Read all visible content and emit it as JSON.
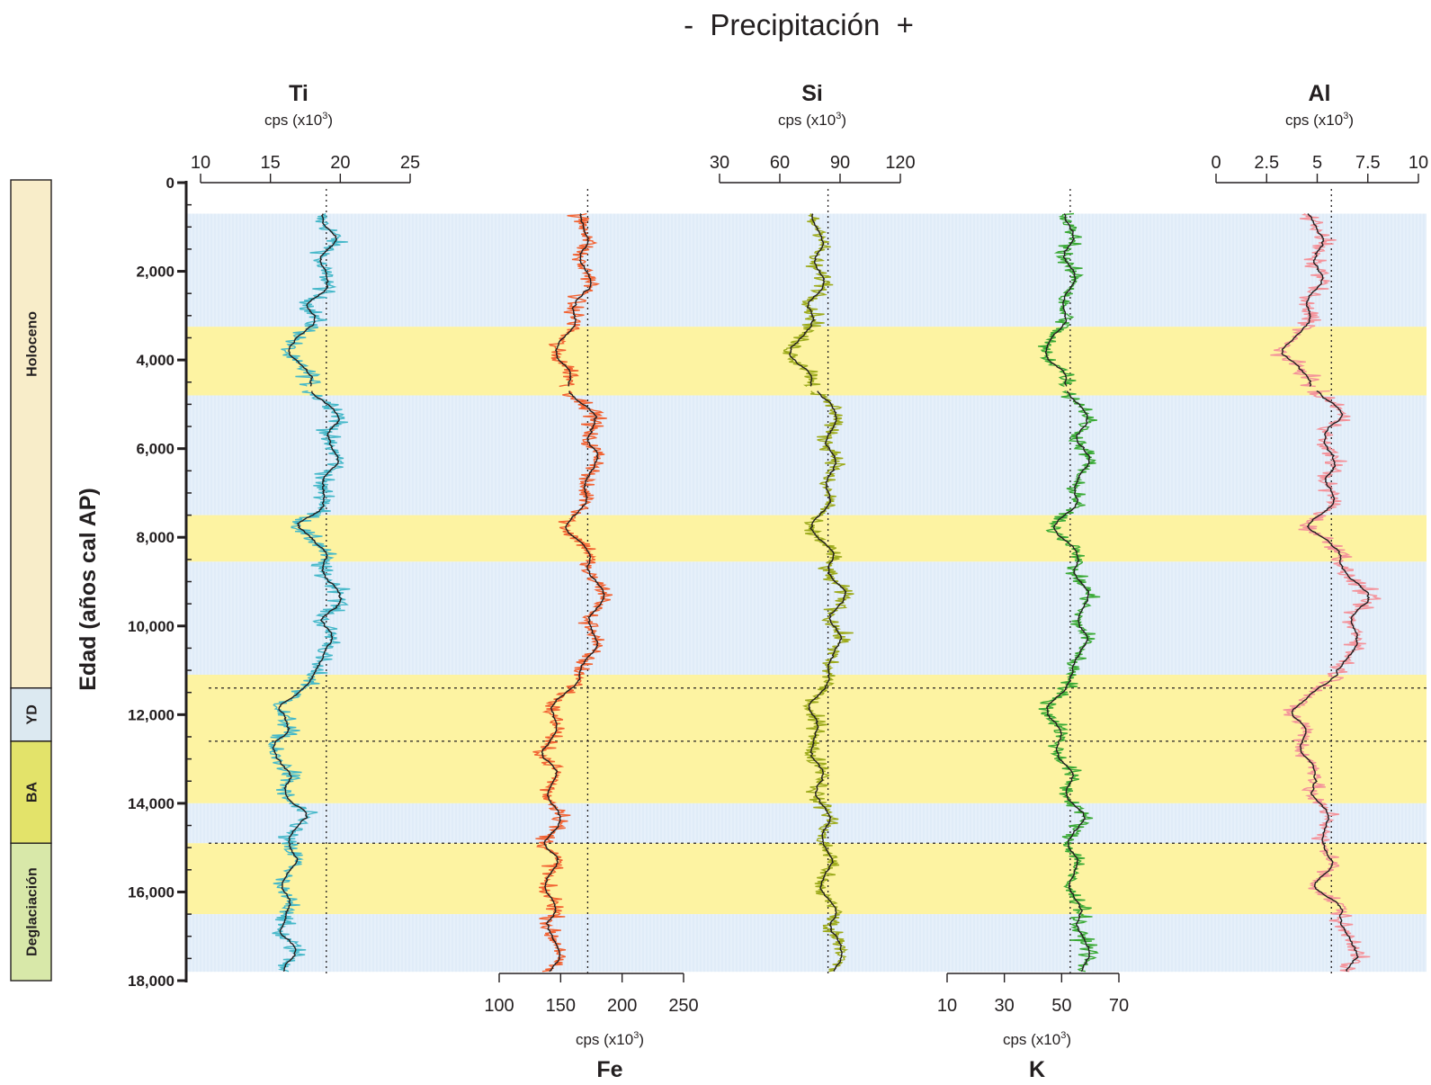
{
  "chart_data": {
    "type": "line",
    "title": "-  Precipitación  +",
    "ylabel": "Edad (años cal AP)",
    "ylim": [
      0,
      18000
    ],
    "y_ticks": [
      0,
      2000,
      4000,
      6000,
      8000,
      10000,
      12000,
      14000,
      16000,
      18000
    ],
    "y_tick_labels": [
      "0",
      "2,000",
      "4,000",
      "6,000",
      "8,000",
      "10,000",
      "12,000",
      "14,000",
      "16,000",
      "18,000"
    ],
    "unit": "cps (x10",
    "unit_exp": "3",
    "periods": [
      {
        "label": "Holoceno",
        "from": 0,
        "to": 11400,
        "color": "#f8edc9"
      },
      {
        "label": "YD",
        "from": 11400,
        "to": 12600,
        "color": "#dce9f1"
      },
      {
        "label": "BA",
        "from": 12600,
        "to": 14900,
        "color": "#e3e36a"
      },
      {
        "label": "Deglaciación",
        "from": 14900,
        "to": 18000,
        "color": "#d8e8a9"
      }
    ],
    "bands": [
      {
        "from": 700,
        "to": 3250,
        "kind": "humid",
        "color": "#e6f0fa"
      },
      {
        "from": 3250,
        "to": 4800,
        "kind": "dry",
        "color": "#fdf3a2"
      },
      {
        "from": 4800,
        "to": 7500,
        "kind": "humid",
        "color": "#e6f0fa"
      },
      {
        "from": 7500,
        "to": 8550,
        "kind": "dry",
        "color": "#fdf3a2"
      },
      {
        "from": 8550,
        "to": 11100,
        "kind": "humid",
        "color": "#e6f0fa"
      },
      {
        "from": 11100,
        "to": 14000,
        "kind": "dry",
        "color": "#fdf3a2"
      },
      {
        "from": 14000,
        "to": 14900,
        "kind": "humid",
        "color": "#e6f0fa"
      },
      {
        "from": 14900,
        "to": 16500,
        "kind": "dry",
        "color": "#fdf3a2"
      },
      {
        "from": 16500,
        "to": 17800,
        "kind": "humid",
        "color": "#e6f0fa"
      }
    ],
    "boundaries": [
      11400,
      12600,
      14900
    ],
    "series": [
      {
        "name": "Ti",
        "axis_pos": "top",
        "xlim": [
          10,
          25
        ],
        "ticks": [
          10,
          15,
          20,
          25
        ],
        "tick_labels": [
          "10",
          "15",
          "20",
          "25"
        ],
        "color": "#45b8c9",
        "mean_line": 19,
        "profile": [
          [
            700,
            19
          ],
          [
            1500,
            19.2
          ],
          [
            2000,
            18.8
          ],
          [
            2500,
            18.5
          ],
          [
            3000,
            18.2
          ],
          [
            3400,
            17
          ],
          [
            4000,
            16.5
          ],
          [
            4600,
            18
          ],
          [
            5000,
            19.5
          ],
          [
            6000,
            19.5
          ],
          [
            7000,
            19
          ],
          [
            7700,
            17.5
          ],
          [
            8400,
            18.5
          ],
          [
            9000,
            19.5
          ],
          [
            9500,
            19.8
          ],
          [
            10000,
            19
          ],
          [
            10800,
            19
          ],
          [
            11400,
            17
          ],
          [
            12000,
            16
          ],
          [
            12700,
            15.5
          ],
          [
            13500,
            16
          ],
          [
            14200,
            17
          ],
          [
            15000,
            16.5
          ],
          [
            16000,
            16
          ],
          [
            17000,
            16.2
          ],
          [
            17800,
            16.5
          ]
        ]
      },
      {
        "name": "Fe",
        "axis_pos": "bottom",
        "xlim": [
          100,
          250
        ],
        "ticks": [
          100,
          150,
          200,
          250
        ],
        "tick_labels": [
          "100",
          "150",
          "200",
          "250"
        ],
        "color": "#f26333",
        "mean_line": 172,
        "profile": [
          [
            700,
            170
          ],
          [
            1500,
            168
          ],
          [
            2000,
            172
          ],
          [
            2500,
            168
          ],
          [
            3000,
            162
          ],
          [
            3500,
            150
          ],
          [
            4000,
            150
          ],
          [
            4600,
            158
          ],
          [
            5000,
            172
          ],
          [
            6000,
            178
          ],
          [
            7000,
            172
          ],
          [
            7700,
            158
          ],
          [
            8400,
            170
          ],
          [
            9000,
            180
          ],
          [
            9500,
            182
          ],
          [
            10000,
            175
          ],
          [
            10800,
            175
          ],
          [
            11400,
            155
          ],
          [
            12000,
            145
          ],
          [
            12700,
            140
          ],
          [
            13500,
            142
          ],
          [
            14200,
            148
          ],
          [
            15000,
            142
          ],
          [
            16000,
            140
          ],
          [
            17000,
            146
          ],
          [
            17800,
            144
          ]
        ]
      },
      {
        "name": "Si",
        "axis_pos": "top",
        "xlim": [
          30,
          120
        ],
        "ticks": [
          30,
          60,
          90,
          120
        ],
        "tick_labels": [
          "30",
          "60",
          "90",
          "120"
        ],
        "color": "#9dab1c",
        "mean_line": 84,
        "profile": [
          [
            700,
            78
          ],
          [
            1500,
            80
          ],
          [
            2000,
            79
          ],
          [
            2500,
            80
          ],
          [
            3000,
            78
          ],
          [
            3400,
            70
          ],
          [
            4000,
            68
          ],
          [
            4600,
            78
          ],
          [
            5000,
            86
          ],
          [
            6000,
            86
          ],
          [
            7000,
            85
          ],
          [
            7700,
            76
          ],
          [
            8400,
            84
          ],
          [
            9000,
            88
          ],
          [
            9500,
            90
          ],
          [
            10000,
            88
          ],
          [
            10800,
            87
          ],
          [
            11400,
            80
          ],
          [
            12000,
            76
          ],
          [
            12700,
            78
          ],
          [
            13500,
            80
          ],
          [
            14200,
            82
          ],
          [
            15000,
            84
          ],
          [
            16000,
            82
          ],
          [
            17000,
            90
          ],
          [
            17800,
            88
          ]
        ]
      },
      {
        "name": "K",
        "axis_pos": "bottom",
        "xlim": [
          10,
          70
        ],
        "ticks": [
          10,
          30,
          50,
          70
        ],
        "tick_labels": [
          "10",
          "30",
          "50",
          "70"
        ],
        "color": "#3aaa35",
        "mean_line": 53,
        "profile": [
          [
            700,
            53
          ],
          [
            1500,
            52
          ],
          [
            2000,
            54
          ],
          [
            2500,
            52
          ],
          [
            3000,
            52
          ],
          [
            3400,
            46
          ],
          [
            4000,
            46
          ],
          [
            4600,
            53
          ],
          [
            5000,
            57
          ],
          [
            6000,
            58
          ],
          [
            7000,
            56
          ],
          [
            7700,
            48
          ],
          [
            8400,
            55
          ],
          [
            9000,
            57
          ],
          [
            9500,
            58
          ],
          [
            10000,
            57
          ],
          [
            10800,
            57
          ],
          [
            11400,
            50
          ],
          [
            12000,
            46
          ],
          [
            12700,
            50
          ],
          [
            13500,
            52
          ],
          [
            14200,
            56
          ],
          [
            15000,
            54
          ],
          [
            16000,
            54
          ],
          [
            17000,
            58
          ],
          [
            17800,
            58
          ]
        ]
      },
      {
        "name": "Al",
        "axis_pos": "top",
        "xlim": [
          0,
          10
        ],
        "ticks": [
          0,
          2.5,
          5,
          7.5,
          10
        ],
        "tick_labels": [
          "0",
          "2.5",
          "5",
          "7.5",
          "10"
        ],
        "color": "#f4929a",
        "mean_line": 5.7,
        "profile": [
          [
            700,
            5
          ],
          [
            1500,
            5
          ],
          [
            2000,
            5.2
          ],
          [
            2500,
            4.6
          ],
          [
            3000,
            4.8
          ],
          [
            3400,
            3.8
          ],
          [
            4000,
            3.5
          ],
          [
            4600,
            4.8
          ],
          [
            5000,
            6
          ],
          [
            6000,
            5.5
          ],
          [
            7000,
            5.8
          ],
          [
            7700,
            4.8
          ],
          [
            8400,
            6
          ],
          [
            9000,
            7
          ],
          [
            9500,
            7.2
          ],
          [
            10000,
            6.8
          ],
          [
            10800,
            6.8
          ],
          [
            11400,
            5
          ],
          [
            12000,
            3.8
          ],
          [
            12700,
            4.5
          ],
          [
            13500,
            4.8
          ],
          [
            14200,
            5.3
          ],
          [
            15000,
            5.5
          ],
          [
            16000,
            5.3
          ],
          [
            17000,
            6.8
          ],
          [
            17800,
            6.6
          ]
        ]
      }
    ]
  }
}
